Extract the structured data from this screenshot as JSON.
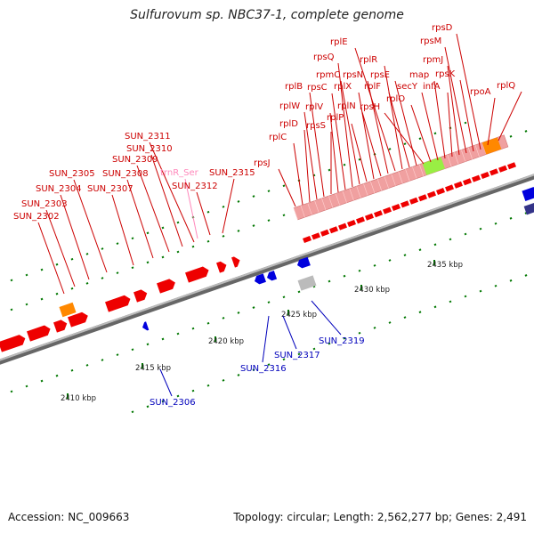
{
  "title": "Sulfurovum sp. NBC37-1, complete genome",
  "accession_text": "Accession: NC_009663",
  "summary_text": "Topology: circular; Length: 2,562,277 bp; Genes: 2,491",
  "colors": {
    "forward_gene": "#ee0000",
    "reverse_gene": "#0000dd",
    "trna": "#ff99cc",
    "rrna_block": "#f0a0a0",
    "green_feature": "#99ee44",
    "orange_feature": "#ff8800",
    "gray_feature": "#bbbbbb",
    "tick": "#007700",
    "backbone": "#888888",
    "label_red": "#cc0000",
    "label_blue": "#0000bb",
    "label_pink": "#ff88bb"
  },
  "scale_labels": [
    "2410 kbp",
    "2415 kbp",
    "2420 kbp",
    "2425 kbp",
    "2430 kbp",
    "2435 kbp"
  ],
  "top_labels": [
    "SUN_2302",
    "SUN_2303",
    "SUN_2304",
    "SUN_2305",
    "SUN_2307",
    "SUN_2308",
    "SUN_2309",
    "SUN_2310",
    "SUN_2311",
    "trnR_Ser",
    "SUN_2312",
    "SUN_2315",
    "rpsJ",
    "rplC",
    "rplD",
    "rplW",
    "rplB",
    "rpsS",
    "rplV",
    "rpsC",
    "rpsQ",
    "rpmC",
    "rplP",
    "rplX",
    "rplN",
    "rpsN",
    "rplE",
    "rplR",
    "rplF",
    "rpsE",
    "rpsH",
    "rplO",
    "secY",
    "map",
    "infA",
    "rpmJ",
    "rpsM",
    "rpsK",
    "rpsD",
    "rpoA",
    "rplQ"
  ],
  "bottom_labels": [
    "SUN_2306",
    "SUN_2316",
    "SUN_2317",
    "SUN_2319"
  ]
}
